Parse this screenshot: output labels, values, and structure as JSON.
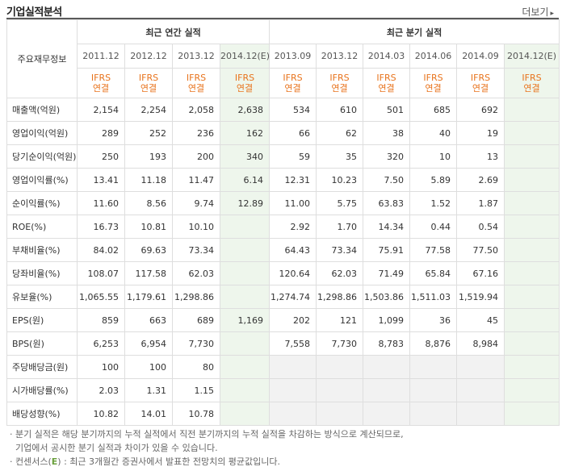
{
  "title": "기업실적분석",
  "more_label": "더보기",
  "row_header_label": "주요재무정보",
  "annual_group": "최근 연간 실적",
  "quarter_group": "최근 분기 실적",
  "annual_periods": [
    "2011.12",
    "2012.12",
    "2013.12",
    "2014.12(E)"
  ],
  "quarter_periods": [
    "2013.09",
    "2013.12",
    "2014.03",
    "2014.06",
    "2014.09",
    "2014.12(E)"
  ],
  "ifrs_label": "IFRS",
  "ifrs_sub": "연결",
  "rows": [
    {
      "label": "매출액(억원)",
      "annual": [
        "2,154",
        "2,254",
        "2,058",
        "2,638"
      ],
      "quarter": [
        "534",
        "610",
        "501",
        "685",
        "692",
        ""
      ]
    },
    {
      "label": "영업이익(억원)",
      "annual": [
        "289",
        "252",
        "236",
        "162"
      ],
      "quarter": [
        "66",
        "62",
        "38",
        "40",
        "19",
        ""
      ]
    },
    {
      "label": "당기순이익(억원)",
      "annual": [
        "250",
        "193",
        "200",
        "340"
      ],
      "quarter": [
        "59",
        "35",
        "320",
        "10",
        "13",
        ""
      ]
    },
    {
      "label": "영업이익률(%)",
      "annual": [
        "13.41",
        "11.18",
        "11.47",
        "6.14"
      ],
      "quarter": [
        "12.31",
        "10.23",
        "7.50",
        "5.89",
        "2.69",
        ""
      ]
    },
    {
      "label": "순이익률(%)",
      "annual": [
        "11.60",
        "8.56",
        "9.74",
        "12.89"
      ],
      "quarter": [
        "11.00",
        "5.75",
        "63.83",
        "1.52",
        "1.87",
        ""
      ]
    },
    {
      "label": "ROE(%)",
      "annual": [
        "16.73",
        "10.81",
        "10.10",
        ""
      ],
      "quarter": [
        "2.92",
        "1.70",
        "14.34",
        "0.44",
        "0.54",
        ""
      ]
    },
    {
      "label": "부채비율(%)",
      "annual": [
        "84.02",
        "69.63",
        "73.34",
        ""
      ],
      "quarter": [
        "64.43",
        "73.34",
        "75.91",
        "77.58",
        "77.50",
        ""
      ]
    },
    {
      "label": "당좌비율(%)",
      "annual": [
        "108.07",
        "117.58",
        "62.03",
        ""
      ],
      "quarter": [
        "120.64",
        "62.03",
        "71.49",
        "65.84",
        "67.16",
        ""
      ]
    },
    {
      "label": "유보율(%)",
      "annual": [
        "1,065.55",
        "1,179.61",
        "1,298.86",
        ""
      ],
      "quarter": [
        "1,274.74",
        "1,298.86",
        "1,503.86",
        "1,511.03",
        "1,519.94",
        ""
      ]
    },
    {
      "label": "EPS(원)",
      "annual": [
        "859",
        "663",
        "689",
        "1,169"
      ],
      "quarter": [
        "202",
        "121",
        "1,099",
        "36",
        "45",
        ""
      ]
    },
    {
      "label": "BPS(원)",
      "annual": [
        "6,253",
        "6,954",
        "7,730",
        ""
      ],
      "quarter": [
        "7,558",
        "7,730",
        "8,783",
        "8,876",
        "8,984",
        ""
      ]
    },
    {
      "label": "주당배당금(원)",
      "annual": [
        "100",
        "100",
        "80",
        ""
      ],
      "quarter": [
        "",
        "",
        "",
        "",
        "",
        ""
      ]
    },
    {
      "label": "시가배당률(%)",
      "annual": [
        "2.03",
        "1.31",
        "1.15",
        ""
      ],
      "quarter": [
        "",
        "",
        "",
        "",
        "",
        ""
      ]
    },
    {
      "label": "배당성향(%)",
      "annual": [
        "10.82",
        "14.01",
        "10.78",
        ""
      ],
      "quarter": [
        "",
        "",
        "",
        "",
        "",
        ""
      ]
    }
  ],
  "section_breaks": [
    3,
    6,
    9,
    11
  ],
  "gray_rows_quarter": [
    11,
    12,
    13
  ],
  "notes": {
    "line1": "분기 실적은 해당 분기까지의 누적 실적에서 직전 분기까지의 누적 실적을 차감하는 방식으로 계산되므로,",
    "line2": "기업에서 공시한 분기 실적과 차이가 있을 수 있습니다.",
    "line3_pre": "컨센서스(",
    "line3_e": "E",
    "line3_post": ") : 최근 3개월간 증권사에서 발표한 전망치의 평균값입니다."
  },
  "colors": {
    "ifrs": "#e8731c",
    "estimate_bg": "#eef6ec",
    "empty_bg": "#f2f2f2"
  }
}
